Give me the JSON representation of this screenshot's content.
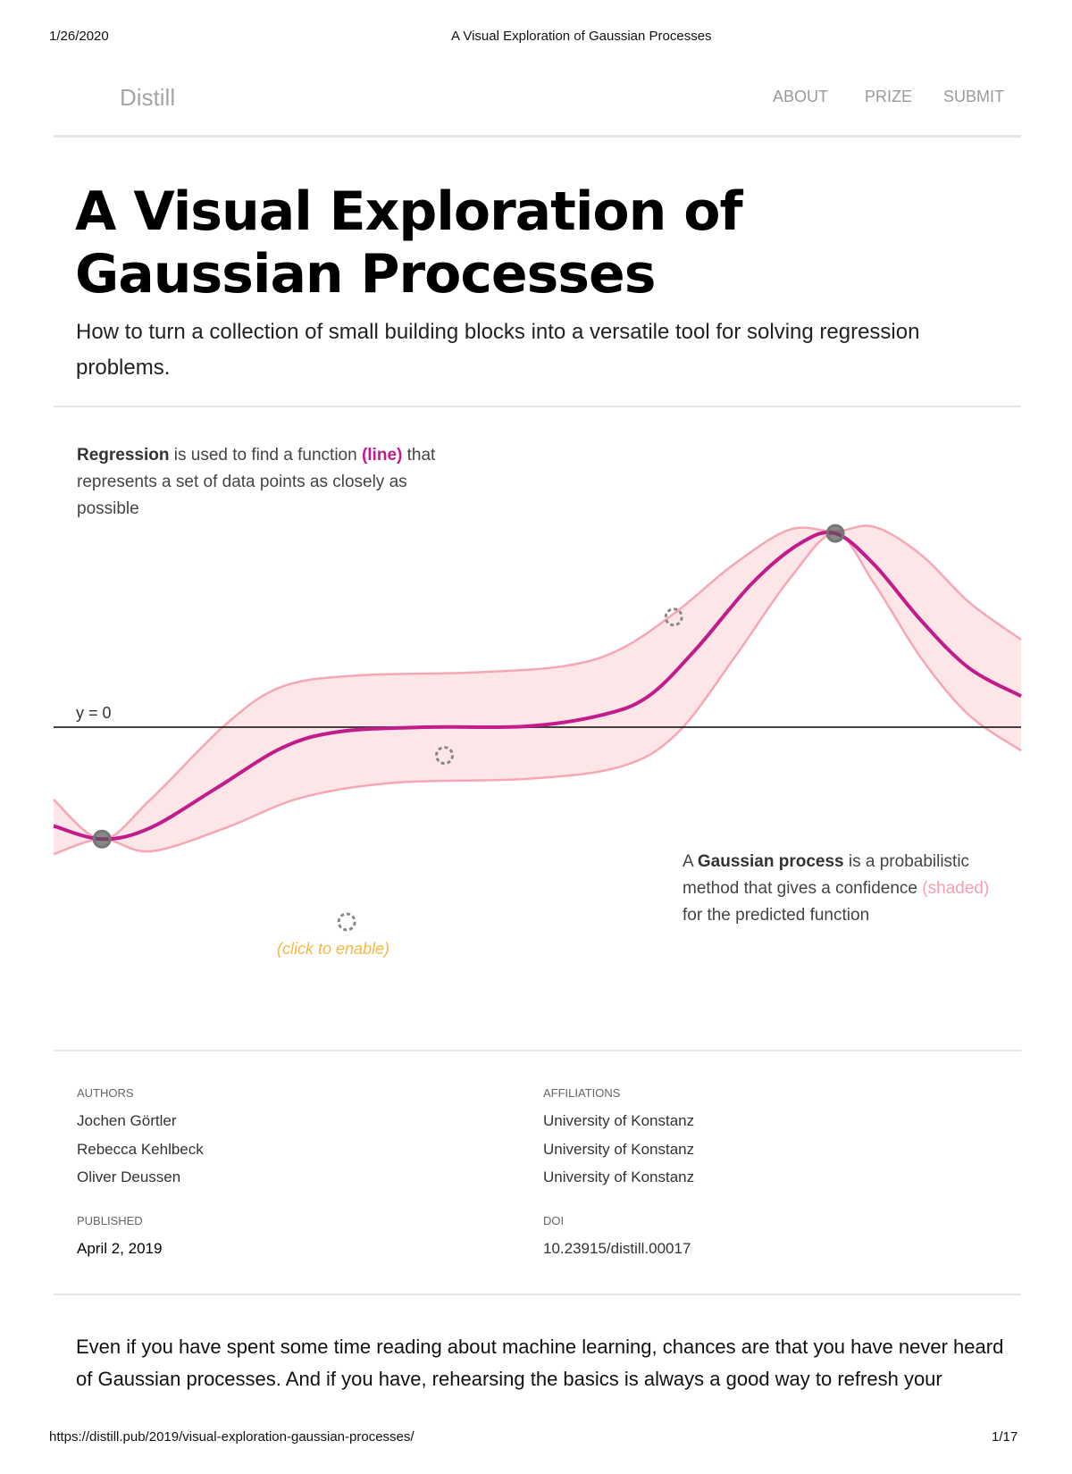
{
  "print_header": {
    "date": "1/26/2020",
    "title": "A Visual Exploration of Gaussian Processes"
  },
  "nav": {
    "logo": "Distill",
    "items": [
      "ABOUT",
      "PRIZE",
      "SUBMIT"
    ]
  },
  "article": {
    "title": "A Visual Exploration of Gaussian Processes",
    "subtitle": "How to turn a collection of small building blocks into a versatile tool for solving regression problems."
  },
  "figure": {
    "left_note": {
      "bold": "Regression",
      "text1": " is used to find a function ",
      "highlight": "(line)",
      "text2": " that represents a set of data points as closely as possible"
    },
    "right_note": {
      "pre": "A ",
      "bold": "Gaussian process",
      "text1": " is a probabilistic method that gives a confidence ",
      "highlight": "(shaded)",
      "text2": " for the predicted function"
    },
    "axis_label": "y = 0",
    "click_hint": "(click to enable)",
    "colors": {
      "mean": "#c21b8c",
      "band_fill": "#fde6e8",
      "band_stroke": "#f7a6b4",
      "axis": "#222222",
      "hint": "#f5b942"
    }
  },
  "chart_data": {
    "type": "line",
    "xlim": [
      0,
      10
    ],
    "ylim": [
      -2.5,
      2.5
    ],
    "series": [
      {
        "name": "mean",
        "points": [
          [
            0,
            -1.05
          ],
          [
            0.5,
            -1.19
          ],
          [
            1.0,
            -1.07
          ],
          [
            1.68,
            -0.65
          ],
          [
            2.36,
            -0.22
          ],
          [
            2.94,
            -0.05
          ],
          [
            3.82,
            0
          ],
          [
            4.89,
            0.01
          ],
          [
            5.67,
            0.13
          ],
          [
            6.15,
            0.33
          ],
          [
            6.64,
            0.83
          ],
          [
            7.22,
            1.53
          ],
          [
            7.71,
            1.95
          ],
          [
            8.08,
            2.06
          ],
          [
            8.48,
            1.73
          ],
          [
            8.97,
            1.13
          ],
          [
            9.46,
            0.63
          ],
          [
            10,
            0.33
          ]
        ]
      },
      {
        "name": "upper",
        "points": [
          [
            0,
            -0.77
          ],
          [
            0.5,
            -1.19
          ],
          [
            1.0,
            -0.77
          ],
          [
            1.78,
            0.03
          ],
          [
            2.36,
            0.43
          ],
          [
            3.14,
            0.55
          ],
          [
            4.31,
            0.58
          ],
          [
            5.28,
            0.65
          ],
          [
            5.86,
            0.83
          ],
          [
            6.44,
            1.23
          ],
          [
            7.03,
            1.73
          ],
          [
            7.61,
            2.1
          ],
          [
            8.08,
            2.08
          ],
          [
            8.48,
            2.13
          ],
          [
            8.97,
            1.83
          ],
          [
            9.46,
            1.33
          ],
          [
            10,
            0.93
          ]
        ]
      },
      {
        "name": "lower",
        "points": [
          [
            0,
            -1.35
          ],
          [
            0.5,
            -1.19
          ],
          [
            1.0,
            -1.32
          ],
          [
            1.78,
            -1.07
          ],
          [
            2.56,
            -0.75
          ],
          [
            3.53,
            -0.59
          ],
          [
            4.89,
            -0.55
          ],
          [
            5.86,
            -0.42
          ],
          [
            6.44,
            -0.07
          ],
          [
            7.03,
            0.73
          ],
          [
            7.61,
            1.58
          ],
          [
            8.08,
            2.06
          ],
          [
            8.48,
            1.53
          ],
          [
            8.97,
            0.73
          ],
          [
            9.46,
            0.13
          ],
          [
            10,
            -0.25
          ]
        ]
      }
    ],
    "active_points": [
      [
        0.5,
        -1.19
      ],
      [
        8.08,
        2.06
      ]
    ],
    "inactive_points": [
      [
        6.41,
        1.17
      ],
      [
        4.04,
        -0.3
      ],
      [
        3.03,
        -2.07
      ]
    ]
  },
  "byline": {
    "authors_label": "AUTHORS",
    "affiliations_label": "AFFILIATIONS",
    "authors": [
      "Jochen Görtler",
      "Rebecca Kehlbeck",
      "Oliver Deussen"
    ],
    "affiliations": [
      "University of Konstanz",
      "University of Konstanz",
      "University of Konstanz"
    ],
    "published_label": "PUBLISHED",
    "published": "April 2, 2019",
    "doi_label": "DOI",
    "doi": "10.23915/distill.00017"
  },
  "body": {
    "paragraph": "Even if you have spent some time reading about machine learning, chances are that you have never heard of Gaussian processes. And if you have, rehearsing the basics is always a good way to refresh your"
  },
  "print_footer": {
    "url": "https://distill.pub/2019/visual-exploration-gaussian-processes/",
    "page": "1/17"
  }
}
